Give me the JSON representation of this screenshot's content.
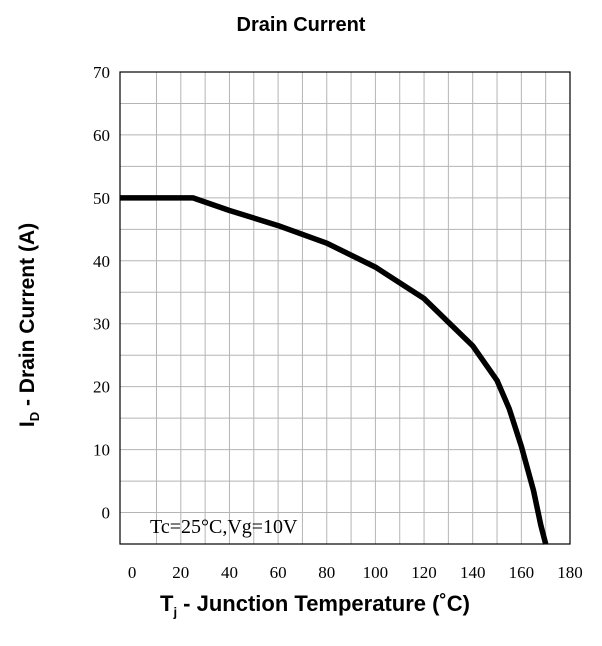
{
  "chart_data": {
    "type": "line",
    "title": "Drain Current",
    "xlabel_main": "T",
    "xlabel_sub": "j",
    "xlabel_rest": " - Junction Temperature (˚C)",
    "ylabel_main": "I",
    "ylabel_sub": "D",
    "ylabel_rest": " - Drain Current (A)",
    "annotation": "Tc=25°C,Vg=10V",
    "xlim": [
      -5,
      180
    ],
    "ylim": [
      -5,
      70
    ],
    "x_ticks": [
      0,
      20,
      40,
      60,
      80,
      100,
      120,
      140,
      160,
      180
    ],
    "y_ticks": [
      0,
      10,
      20,
      30,
      40,
      50,
      60,
      70
    ],
    "grid": true,
    "series": [
      {
        "x": [
          -5,
          0,
          10,
          20,
          25,
          40,
          60,
          80,
          100,
          120,
          140,
          150,
          155,
          160,
          165,
          168,
          170
        ],
        "y": [
          50,
          50,
          50,
          50,
          50,
          48,
          45.6,
          42.8,
          39,
          34,
          26.5,
          21,
          16.5,
          10.5,
          3.5,
          -2,
          -5
        ]
      }
    ]
  }
}
